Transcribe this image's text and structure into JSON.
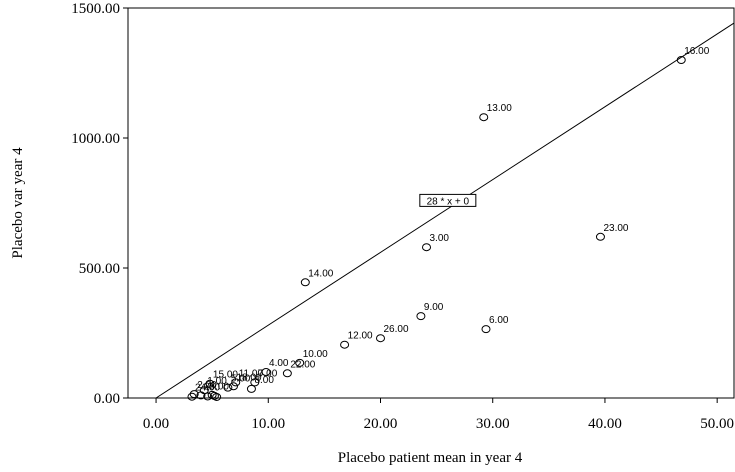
{
  "chart_data": {
    "type": "scatter",
    "xlabel": "Placebo patient mean in year 4",
    "ylabel": "Placebo var year 4",
    "xlim": [
      -2.5,
      51.5
    ],
    "ylim": [
      0,
      1500
    ],
    "x_ticks": [
      "0.00",
      "10.00",
      "20.00",
      "30.00",
      "40.00",
      "50.00"
    ],
    "x_tick_values": [
      0,
      10,
      20,
      30,
      40,
      50
    ],
    "y_ticks": [
      "0.00",
      "500.00",
      "1000.00",
      "1500.00"
    ],
    "y_tick_values": [
      0,
      500,
      1000,
      1500
    ],
    "grid": false,
    "fit_line": {
      "slope": 28,
      "intercept": 0,
      "label": "28 * x + 0",
      "label_at": [
        26,
        760
      ]
    },
    "points": [
      {
        "x": 46.8,
        "y": 1300,
        "label": "16.00"
      },
      {
        "x": 29.2,
        "y": 1080,
        "label": "13.00"
      },
      {
        "x": 39.6,
        "y": 620,
        "label": "23.00"
      },
      {
        "x": 24.1,
        "y": 580,
        "label": "3.00"
      },
      {
        "x": 13.3,
        "y": 445,
        "label": "14.00"
      },
      {
        "x": 23.6,
        "y": 315,
        "label": "9.00"
      },
      {
        "x": 29.4,
        "y": 265,
        "label": "6.00"
      },
      {
        "x": 20.0,
        "y": 230,
        "label": "26.00"
      },
      {
        "x": 16.8,
        "y": 205,
        "label": "12.00"
      },
      {
        "x": 12.8,
        "y": 135,
        "label": "10.00"
      },
      {
        "x": 11.7,
        "y": 95,
        "label": "22.00"
      },
      {
        "x": 9.8,
        "y": 100,
        "label": "4.00"
      },
      {
        "x": 7.1,
        "y": 60,
        "label": "11.00"
      },
      {
        "x": 6.9,
        "y": 45,
        "label": "18.00"
      },
      {
        "x": 6.4,
        "y": 40,
        "label": "5.00"
      },
      {
        "x": 8.8,
        "y": 60,
        "label": "7.00"
      },
      {
        "x": 8.5,
        "y": 35,
        "label": "8.00"
      },
      {
        "x": 4.8,
        "y": 55,
        "label": "15.00"
      },
      {
        "x": 4.3,
        "y": 30,
        "label": "1.00"
      },
      {
        "x": 3.4,
        "y": 15,
        "label": "2.00"
      },
      {
        "x": 4.0,
        "y": 10,
        "label": "25.00"
      },
      {
        "x": 3.2,
        "y": 5,
        "label": "24.00"
      },
      {
        "x": 5.0,
        "y": 12,
        "label": ""
      },
      {
        "x": 5.2,
        "y": 8,
        "label": ""
      },
      {
        "x": 4.6,
        "y": 6,
        "label": ""
      },
      {
        "x": 5.4,
        "y": 4,
        "label": ""
      }
    ]
  }
}
